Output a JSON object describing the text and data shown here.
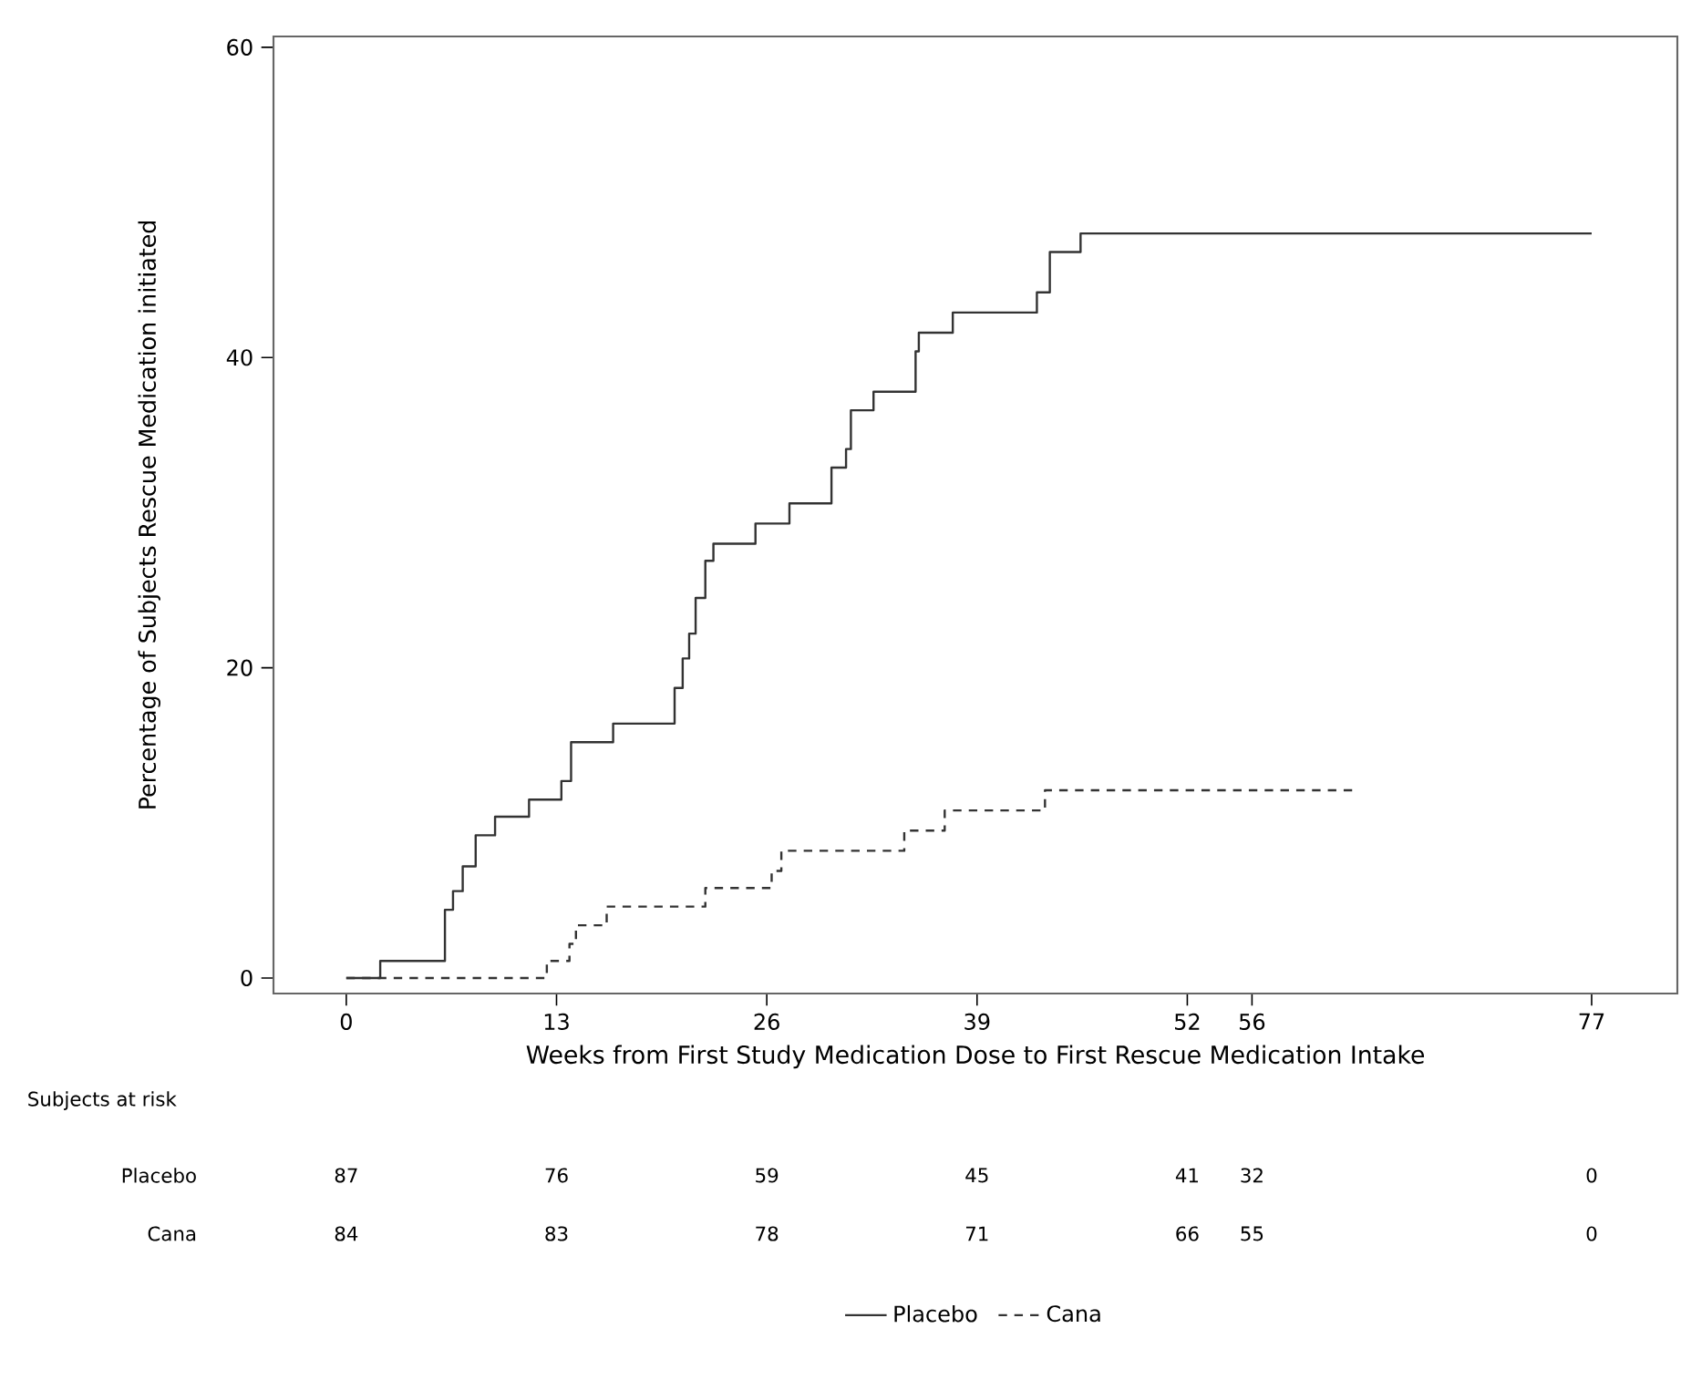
{
  "chart_data": {
    "type": "step",
    "xlabel": "Weeks from First Study Medication Dose to First Rescue Medication Intake",
    "ylabel": "Percentage of Subjects Rescue Medication initiated",
    "xlim": [
      -4.5,
      82.3
    ],
    "ylim": [
      -1,
      60.7
    ],
    "xticks": [
      0,
      13,
      26,
      39,
      52,
      56,
      77
    ],
    "yticks": [
      0,
      20,
      40,
      60
    ],
    "legend": "bottom",
    "grid": false,
    "series": [
      {
        "name": "Placebo",
        "color": "#333333",
        "line_style": "solid",
        "x": [
          0,
          2.1,
          6.1,
          6.6,
          7.2,
          8.0,
          9.2,
          11.3,
          13.3,
          13.9,
          16.5,
          20.3,
          20.8,
          21.2,
          21.6,
          22.2,
          22.7,
          25.3,
          27.4,
          30.0,
          30.9,
          31.2,
          32.6,
          35.2,
          35.4,
          37.5,
          42.7,
          43.5,
          45.4,
          77
        ],
        "values": [
          0,
          1.1,
          4.4,
          5.6,
          7.2,
          9.2,
          10.4,
          11.5,
          12.7,
          15.2,
          16.4,
          18.7,
          20.6,
          22.2,
          24.5,
          26.9,
          28.0,
          29.3,
          30.6,
          32.9,
          34.1,
          36.6,
          37.8,
          40.4,
          41.6,
          42.9,
          44.2,
          46.8,
          48.0,
          48.0
        ]
      },
      {
        "name": "Cana",
        "color": "#333333",
        "line_style": "dashed",
        "x": [
          0,
          12.4,
          13.8,
          14.2,
          16.1,
          22.2,
          26.3,
          26.9,
          34.5,
          37.0,
          43.2,
          62.3
        ],
        "values": [
          0,
          1.1,
          2.2,
          3.4,
          4.6,
          5.8,
          6.9,
          8.2,
          9.5,
          10.8,
          12.1,
          12.1
        ]
      }
    ],
    "annotations": [
      "Subjects at risk",
      "Placebo",
      "87",
      "76",
      "59",
      "45",
      "41",
      "32",
      "0",
      "Cana",
      "84",
      "83",
      "78",
      "71",
      "66",
      "55",
      "0"
    ]
  }
}
